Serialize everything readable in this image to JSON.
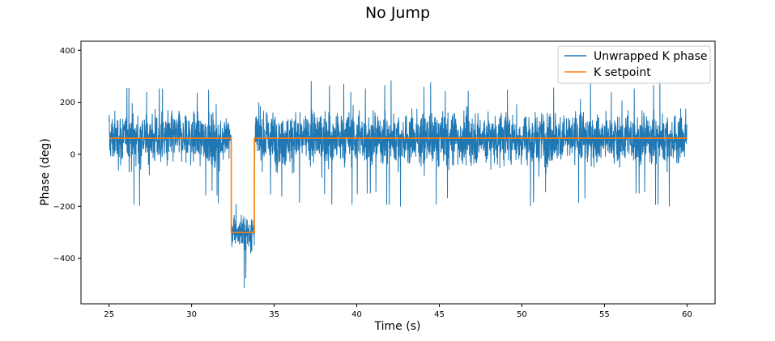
{
  "chart_data": {
    "type": "line",
    "title": "No Jump",
    "xlabel": "Time (s)",
    "ylabel": "Phase (deg)",
    "xlim": [
      23.3,
      61.7
    ],
    "ylim": [
      -575,
      435
    ],
    "xticks": [
      25,
      30,
      35,
      40,
      45,
      50,
      55,
      60
    ],
    "yticks": [
      400,
      200,
      0,
      -200,
      -400
    ],
    "ytick_labels": [
      "400",
      "200",
      "0",
      "−200",
      "−400"
    ],
    "grid": false,
    "legend_position": "top-right",
    "series": [
      {
        "name": "Unwrapped K phase",
        "color": "#1f77b4",
        "style": "noisy signal",
        "x_range": [
          25.0,
          60.0
        ],
        "segments": [
          {
            "x": [
              25.0,
              32.4
            ],
            "mean": 62,
            "min": -200,
            "max": 285
          },
          {
            "x": [
              32.4,
              33.8
            ],
            "mean": -300,
            "min": -520,
            "max": -170
          },
          {
            "x": [
              33.8,
              60.0
            ],
            "mean": 62,
            "min": -205,
            "max": 290
          }
        ]
      },
      {
        "name": "K setpoint",
        "color": "#ff7f0e",
        "x": [
          25.0,
          32.4,
          32.4,
          33.8,
          33.8,
          60.0
        ],
        "y": [
          62,
          62,
          -300,
          -300,
          62,
          62
        ]
      }
    ]
  }
}
